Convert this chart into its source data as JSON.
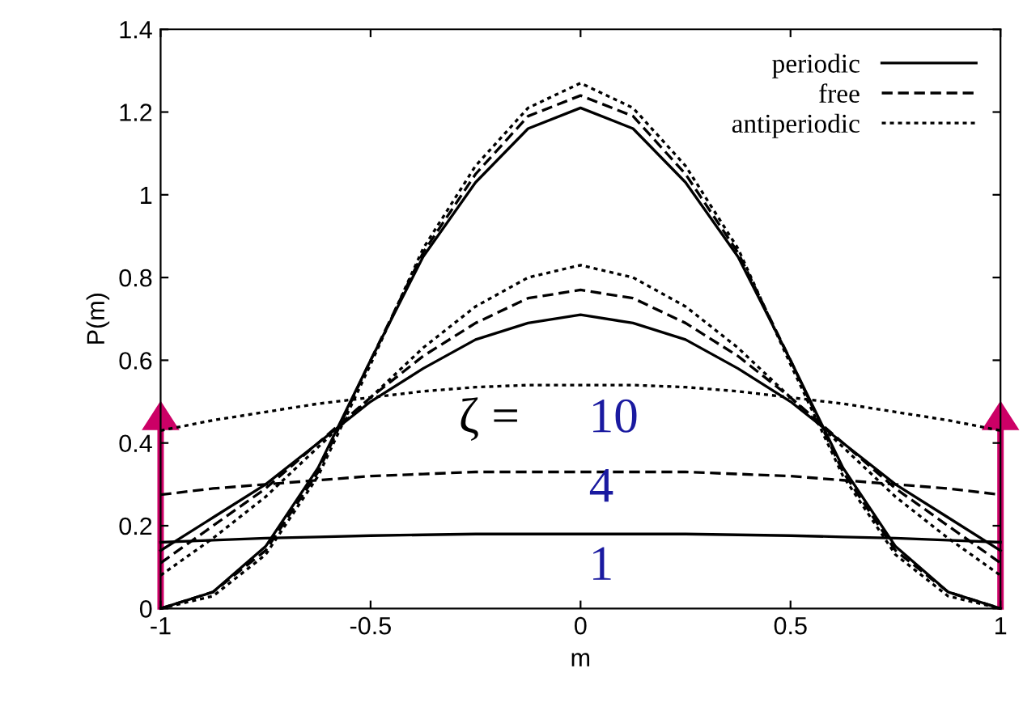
{
  "chart_data": {
    "type": "line",
    "xlabel": "m",
    "ylabel": "P(m)",
    "x": [
      -1,
      -0.875,
      -0.75,
      -0.625,
      -0.5,
      -0.375,
      -0.25,
      -0.125,
      0,
      0.125,
      0.25,
      0.375,
      0.5,
      0.625,
      0.75,
      0.875,
      1
    ],
    "xlim": [
      -1,
      1
    ],
    "xticks": [
      -1,
      -0.5,
      0,
      0.5,
      1
    ],
    "ylim": [
      0,
      1.4
    ],
    "yticks": [
      0,
      0.2,
      0.4,
      0.6,
      0.8,
      1,
      1.2,
      1.4
    ],
    "grid": false,
    "legend": "top right",
    "marker": "none",
    "series": [
      {
        "name": "periodic",
        "color": "#000000",
        "line_style": "solid",
        "values": [
          0.0,
          0.04,
          0.15,
          0.34,
          0.6,
          0.85,
          1.03,
          1.16,
          1.21,
          1.16,
          1.03,
          0.85,
          0.6,
          0.34,
          0.15,
          0.04,
          0.0
        ]
      },
      {
        "name": "free",
        "color": "#000000",
        "line_style": "dashed",
        "values": [
          0.0,
          0.04,
          0.14,
          0.33,
          0.6,
          0.86,
          1.05,
          1.19,
          1.24,
          1.19,
          1.05,
          0.86,
          0.6,
          0.33,
          0.14,
          0.04,
          0.0
        ]
      },
      {
        "name": "antiperiodic",
        "color": "#000000",
        "line_style": "dotted",
        "values": [
          0.0,
          0.03,
          0.13,
          0.32,
          0.59,
          0.87,
          1.07,
          1.21,
          1.27,
          1.21,
          1.07,
          0.87,
          0.59,
          0.32,
          0.13,
          0.03,
          0.0
        ]
      },
      {
        "color": "#000000",
        "line_style": "solid",
        "values": [
          0.14,
          0.22,
          0.3,
          0.4,
          0.5,
          0.58,
          0.65,
          0.69,
          0.71,
          0.69,
          0.65,
          0.58,
          0.5,
          0.4,
          0.3,
          0.22,
          0.14
        ]
      },
      {
        "color": "#000000",
        "line_style": "dashed",
        "values": [
          0.11,
          0.2,
          0.29,
          0.4,
          0.51,
          0.61,
          0.69,
          0.75,
          0.77,
          0.75,
          0.69,
          0.61,
          0.51,
          0.4,
          0.29,
          0.2,
          0.11
        ]
      },
      {
        "color": "#000000",
        "line_style": "dotted",
        "values": [
          0.08,
          0.17,
          0.27,
          0.39,
          0.51,
          0.63,
          0.73,
          0.8,
          0.83,
          0.8,
          0.73,
          0.63,
          0.51,
          0.39,
          0.27,
          0.17,
          0.08
        ]
      },
      {
        "color": "#000000",
        "line_style": "solid",
        "values": [
          0.16,
          0.165,
          0.17,
          0.173,
          0.176,
          0.178,
          0.18,
          0.18,
          0.18,
          0.18,
          0.18,
          0.178,
          0.176,
          0.173,
          0.17,
          0.165,
          0.16
        ]
      },
      {
        "color": "#000000",
        "line_style": "dashed",
        "values": [
          0.275,
          0.29,
          0.3,
          0.31,
          0.32,
          0.325,
          0.33,
          0.33,
          0.33,
          0.33,
          0.33,
          0.325,
          0.32,
          0.31,
          0.3,
          0.29,
          0.275
        ]
      },
      {
        "color": "#000000",
        "line_style": "dotted",
        "values": [
          0.43,
          0.455,
          0.475,
          0.495,
          0.51,
          0.525,
          0.535,
          0.54,
          0.54,
          0.54,
          0.535,
          0.525,
          0.51,
          0.495,
          0.475,
          0.455,
          0.43
        ]
      }
    ],
    "annotations": [
      "ζ =",
      "10",
      "4",
      "1"
    ]
  }
}
